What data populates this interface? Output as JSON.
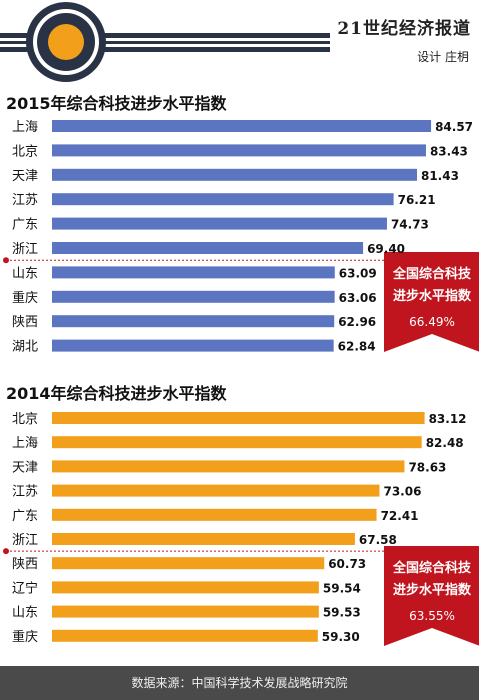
{
  "header": {
    "brand": "21世纪经济报道",
    "credit": "设计 庄枂"
  },
  "colors": {
    "blue": "#5b75c1",
    "orange": "#f2a01b",
    "red": "#c0151f",
    "dark": "#2a3245",
    "footer": "#4a4a4a"
  },
  "chart_data": [
    {
      "type": "bar",
      "orientation": "horizontal",
      "title": "2015年综合科技进步水平指数",
      "categories": [
        "上海",
        "北京",
        "天津",
        "江苏",
        "广东",
        "浙江",
        "山东",
        "重庆",
        "陕西",
        "湖北"
      ],
      "values": [
        84.57,
        83.43,
        81.43,
        76.21,
        74.73,
        69.4,
        63.09,
        63.06,
        62.96,
        62.84
      ],
      "value_labels": [
        "84.57",
        "83.43",
        "81.43",
        "76.21",
        "74.73",
        "69.40",
        "63.09",
        "63.06",
        "62.96",
        "62.84"
      ],
      "reference": {
        "label": "全国综合科技进步水平指数",
        "value": 66.49,
        "value_label": "66.49%"
      },
      "color": "#5b75c1"
    },
    {
      "type": "bar",
      "orientation": "horizontal",
      "title": "2014年综合科技进步水平指数",
      "categories": [
        "北京",
        "上海",
        "天津",
        "江苏",
        "广东",
        "浙江",
        "陕西",
        "辽宁",
        "山东",
        "重庆"
      ],
      "values": [
        83.12,
        82.48,
        78.63,
        73.06,
        72.41,
        67.58,
        60.73,
        59.54,
        59.53,
        59.3
      ],
      "value_labels": [
        "83.12",
        "82.48",
        "78.63",
        "73.06",
        "72.41",
        "67.58",
        "60.73",
        "59.54",
        "59.53",
        "59.30"
      ],
      "reference": {
        "label": "全国综合科技进步水平指数",
        "value": 63.55,
        "value_label": "63.55%"
      },
      "color": "#f2a01b"
    }
  ],
  "avg_box_lines": [
    {
      "line1": "全国综合科技",
      "line2": "进步水平指数",
      "value": "66.49%"
    },
    {
      "line1": "全国综合科技",
      "line2": "进步水平指数",
      "value": "63.55%"
    }
  ],
  "footer": {
    "source": "数据来源：中国科学技术发展战略研究院"
  }
}
